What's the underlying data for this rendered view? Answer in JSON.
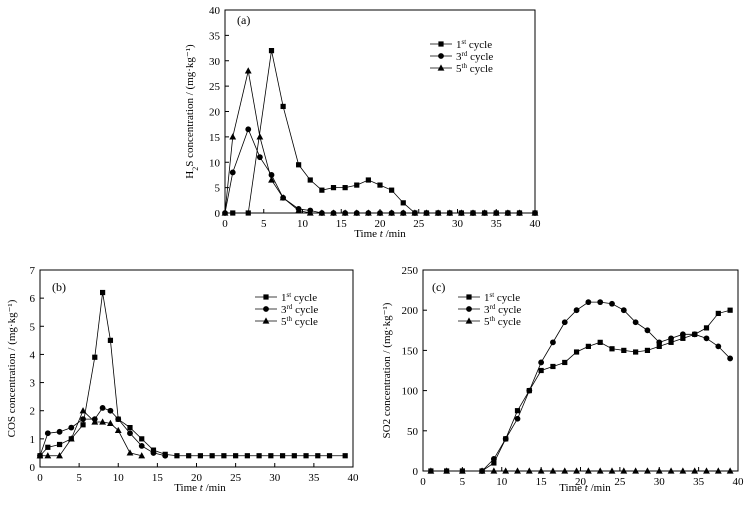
{
  "chart_data": [
    {
      "type": "line",
      "panel_label": "(a)",
      "xlabel": "Time  t /min",
      "ylabel": "H2S concentration  / (mg·kg⁻¹)",
      "xlim": [
        0,
        40
      ],
      "ylim": [
        0,
        40
      ],
      "xticks": [
        0,
        5,
        10,
        15,
        20,
        25,
        30,
        35,
        40
      ],
      "yticks": [
        0,
        5,
        10,
        15,
        20,
        25,
        30,
        35,
        40
      ],
      "legend_position": "top-right",
      "series": [
        {
          "name": "1st cycle",
          "marker": "square",
          "x": [
            1,
            3,
            6,
            7.5,
            9.5,
            11,
            12.5,
            14,
            15.5,
            17,
            18.5,
            20,
            21.5,
            23,
            24.5,
            26,
            27.5,
            29,
            30.5,
            32,
            33.5,
            35,
            36.5,
            38,
            40
          ],
          "y": [
            0,
            0,
            32,
            21,
            9.5,
            6.5,
            4.5,
            5,
            5,
            5.5,
            6.5,
            5.5,
            4.5,
            2,
            0,
            0,
            0,
            0,
            0,
            0,
            0,
            0,
            0,
            0,
            0
          ]
        },
        {
          "name": "3rd cycle",
          "marker": "circle",
          "x": [
            0,
            1,
            3,
            4.5,
            6,
            7.5,
            9.5,
            11,
            12.5,
            14,
            15.5,
            17,
            18.5,
            20,
            21.5,
            23,
            24.5,
            26,
            27.5,
            29,
            30.5,
            32,
            33.5,
            35,
            36.5,
            38,
            40
          ],
          "y": [
            0,
            8,
            16.5,
            11,
            7.5,
            3,
            0.8,
            0.5,
            0,
            0,
            0,
            0,
            0,
            0,
            0,
            0,
            0,
            0,
            0,
            0,
            0,
            0,
            0,
            0,
            0,
            0,
            0
          ]
        },
        {
          "name": "5th cycle",
          "marker": "triangle",
          "x": [
            0,
            1,
            3,
            4.5,
            6,
            7.5,
            9.5,
            11,
            12.5,
            14,
            15.5,
            17,
            18.5,
            20,
            21.5,
            23,
            24.5,
            26,
            27.5,
            29,
            30.5,
            32,
            33.5,
            35,
            36.5,
            38,
            40
          ],
          "y": [
            0,
            15,
            28,
            15,
            6.5,
            3,
            0.5,
            0,
            0,
            0,
            0,
            0,
            0,
            0,
            0,
            0,
            0,
            0,
            0,
            0,
            0,
            0,
            0,
            0,
            0,
            0,
            0
          ]
        }
      ]
    },
    {
      "type": "line",
      "panel_label": "(b)",
      "xlabel": "Time  t /min",
      "ylabel": "COS concentration  / (mg·kg⁻¹)",
      "xlim": [
        0,
        40
      ],
      "ylim": [
        0,
        7
      ],
      "xticks": [
        0,
        5,
        10,
        15,
        20,
        25,
        30,
        35,
        40
      ],
      "yticks": [
        0,
        1,
        2,
        3,
        4,
        5,
        6,
        7
      ],
      "legend_position": "top-right",
      "series": [
        {
          "name": "1st cycle",
          "marker": "square",
          "x": [
            0,
            1,
            2.5,
            4,
            5.5,
            7,
            8,
            9,
            10,
            11.5,
            13,
            14.5,
            16,
            17.5,
            19,
            20.5,
            22,
            23.5,
            25,
            26.5,
            28,
            29.5,
            31,
            32.5,
            34,
            35.5,
            37,
            39
          ],
          "y": [
            0.4,
            0.7,
            0.8,
            1.0,
            1.5,
            3.9,
            6.2,
            4.5,
            1.7,
            1.4,
            1.0,
            0.6,
            0.45,
            0.4,
            0.4,
            0.4,
            0.4,
            0.4,
            0.4,
            0.4,
            0.4,
            0.4,
            0.4,
            0.4,
            0.4,
            0.4,
            0.4,
            0.4
          ]
        },
        {
          "name": "3rd cycle",
          "marker": "circle",
          "x": [
            0,
            1,
            2.5,
            4,
            5.5,
            7,
            8,
            9,
            10,
            11.5,
            13,
            14.5,
            16
          ],
          "y": [
            0.4,
            1.2,
            1.25,
            1.4,
            1.7,
            1.7,
            2.1,
            2.0,
            1.7,
            1.2,
            0.75,
            0.5,
            0.4
          ]
        },
        {
          "name": "5th cycle",
          "marker": "triangle",
          "x": [
            0,
            1,
            2.5,
            4,
            5.5,
            7,
            8,
            9,
            10,
            11.5,
            13
          ],
          "y": [
            0.4,
            0.4,
            0.4,
            1.0,
            2.0,
            1.6,
            1.6,
            1.55,
            1.3,
            0.5,
            0.4
          ]
        }
      ]
    },
    {
      "type": "line",
      "panel_label": "(c)",
      "xlabel": "Time  t /min",
      "ylabel": "SO2 concentration  / (mg·kg⁻¹)",
      "xlim": [
        0,
        40
      ],
      "ylim": [
        0,
        250
      ],
      "xticks": [
        0,
        5,
        10,
        15,
        20,
        25,
        30,
        35,
        40
      ],
      "yticks": [
        0,
        50,
        100,
        150,
        200,
        250
      ],
      "legend_position": "top-center",
      "series": [
        {
          "name": "1st cycle",
          "marker": "square",
          "x": [
            1,
            3,
            5,
            7.5,
            9,
            10.5,
            12,
            13.5,
            15,
            16.5,
            18,
            19.5,
            21,
            22.5,
            24,
            25.5,
            27,
            28.5,
            30,
            31.5,
            33,
            34.5,
            36,
            37.5,
            39
          ],
          "y": [
            0,
            0,
            0,
            0,
            10,
            40,
            75,
            100,
            125,
            130,
            135,
            148,
            155,
            160,
            152,
            150,
            148,
            150,
            155,
            160,
            165,
            170,
            178,
            196,
            200
          ]
        },
        {
          "name": "3rd cycle",
          "marker": "circle",
          "x": [
            7.5,
            9,
            10.5,
            12,
            13.5,
            15,
            16.5,
            18,
            19.5,
            21,
            22.5,
            24,
            25.5,
            27,
            28.5,
            30,
            31.5,
            33,
            34.5,
            36,
            37.5,
            39
          ],
          "y": [
            0,
            15,
            40,
            65,
            100,
            135,
            160,
            185,
            200,
            210,
            210,
            208,
            200,
            185,
            175,
            160,
            165,
            170,
            170,
            165,
            155,
            140
          ]
        },
        {
          "name": "5th cycle",
          "marker": "triangle",
          "x": [
            1,
            3,
            5,
            7.5,
            9,
            10.5,
            12,
            13.5,
            15,
            16.5,
            18,
            19.5,
            21,
            22.5,
            24,
            25.5,
            27,
            28.5,
            30,
            31.5,
            33,
            34.5,
            36,
            37.5,
            39
          ],
          "y": [
            0,
            0,
            0,
            0,
            0,
            0,
            0,
            0,
            0,
            0,
            0,
            0,
            0,
            0,
            0,
            0,
            0,
            0,
            0,
            0,
            0,
            0,
            0,
            0,
            0
          ]
        }
      ]
    }
  ]
}
